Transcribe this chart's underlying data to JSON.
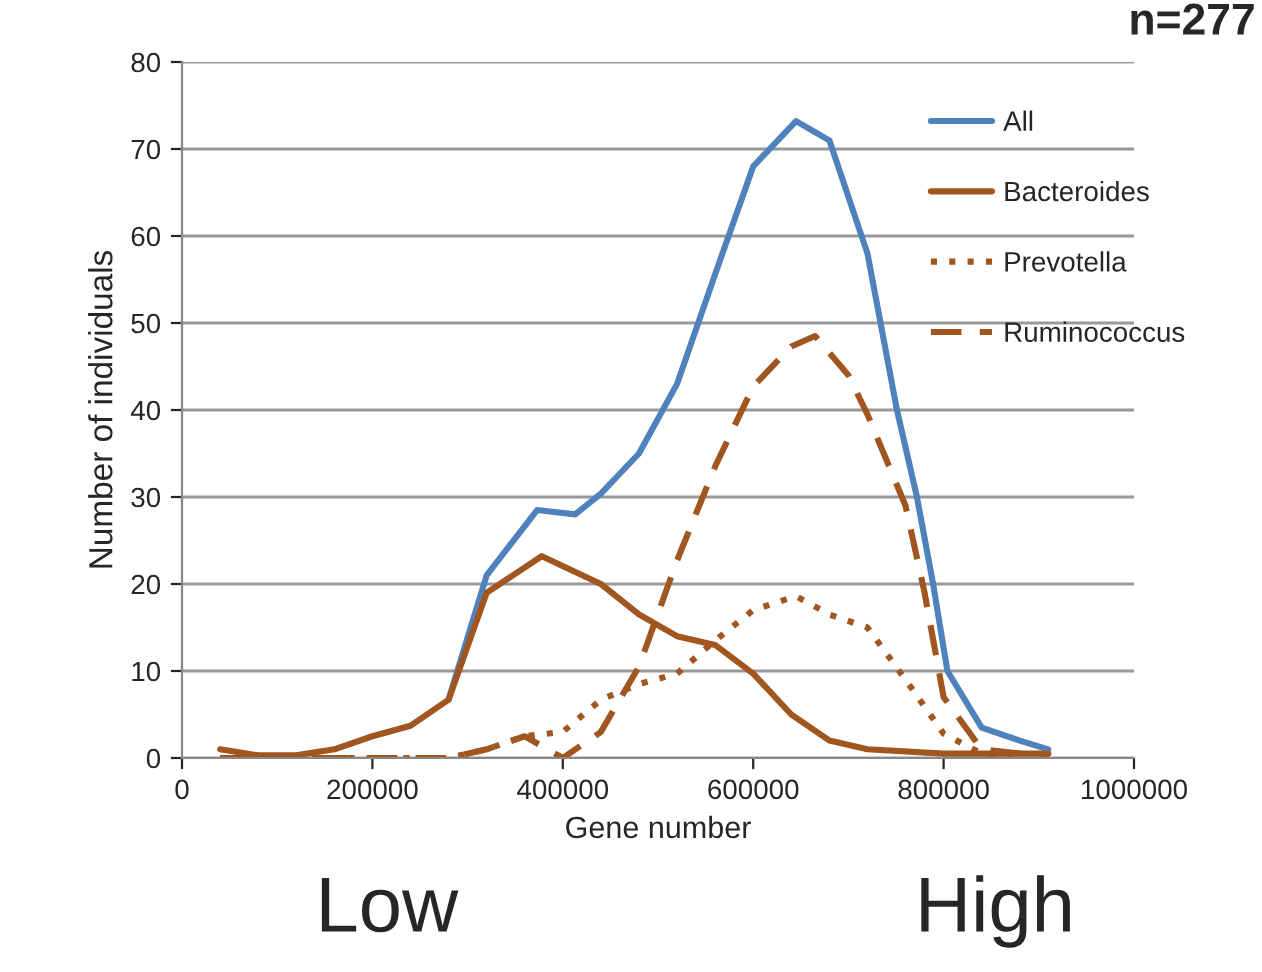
{
  "chart_data": {
    "type": "line",
    "xlabel": "Gene number",
    "ylabel": "Number of individuals",
    "annotations": [
      "n=277",
      "Low",
      "High"
    ],
    "xlim": [
      0,
      1000000
    ],
    "xticks": [
      0,
      200000,
      400000,
      600000,
      800000,
      1000000
    ],
    "ylim": [
      0,
      80
    ],
    "yticks": [
      0,
      10,
      20,
      30,
      40,
      50,
      60,
      70,
      80
    ],
    "grid": "y",
    "legend": "right",
    "marker": "none",
    "series": [
      {
        "name": "All",
        "color": "#4f81bd",
        "line_style": "solid",
        "x": [
          280000,
          320000,
          373000,
          413000,
          440000,
          480000,
          520000,
          560000,
          600000,
          645000,
          680000,
          720000,
          751000,
          772000,
          789000,
          804000,
          840000,
          880000,
          910000
        ],
        "values": [
          6.7,
          21,
          28.5,
          28,
          30.4,
          35,
          43,
          55.6,
          68,
          73.2,
          71,
          58,
          40,
          30,
          20,
          10,
          3.5,
          2,
          1
        ]
      },
      {
        "name": "Bacteroides",
        "color": "#a0561e",
        "line_style": "solid",
        "x": [
          40000,
          80000,
          120000,
          160000,
          200000,
          240000,
          280000,
          320000,
          378000,
          440000,
          480000,
          520000,
          560000,
          600000,
          640000,
          680000,
          720000,
          800000,
          880000,
          910000
        ],
        "values": [
          1,
          0.3,
          0.3,
          1,
          2.5,
          3.7,
          6.7,
          19,
          23.2,
          20,
          16.5,
          14,
          13,
          9.7,
          5,
          2,
          1,
          0.5,
          0.5,
          0.5
        ]
      },
      {
        "name": "Prevotella",
        "color": "#a0561e",
        "line_style": "dotted",
        "x": [
          40000,
          120000,
          200000,
          280000,
          320000,
          360000,
          400000,
          440000,
          480000,
          520000,
          560000,
          600000,
          645000,
          680000,
          720000,
          760000,
          800000,
          840000,
          880000
        ],
        "values": [
          0,
          0,
          0,
          0,
          1,
          2.5,
          3,
          6.7,
          8.5,
          9.7,
          13.5,
          17,
          18.6,
          16.5,
          15,
          9,
          2.8,
          0.5,
          0
        ]
      },
      {
        "name": "Ruminococcus",
        "color": "#a0561e",
        "line_style": "dashed",
        "x": [
          40000,
          120000,
          200000,
          280000,
          320000,
          360000,
          400000,
          440000,
          480000,
          520000,
          560000,
          600000,
          640000,
          665000,
          700000,
          720000,
          760000,
          780000,
          800000,
          840000,
          880000,
          910000
        ],
        "values": [
          0,
          0,
          0,
          0,
          1,
          2.5,
          0,
          3,
          10.5,
          22.7,
          33.5,
          42.7,
          47.3,
          48.5,
          44,
          39.5,
          29,
          19,
          7,
          1,
          0.5,
          0
        ]
      }
    ]
  }
}
